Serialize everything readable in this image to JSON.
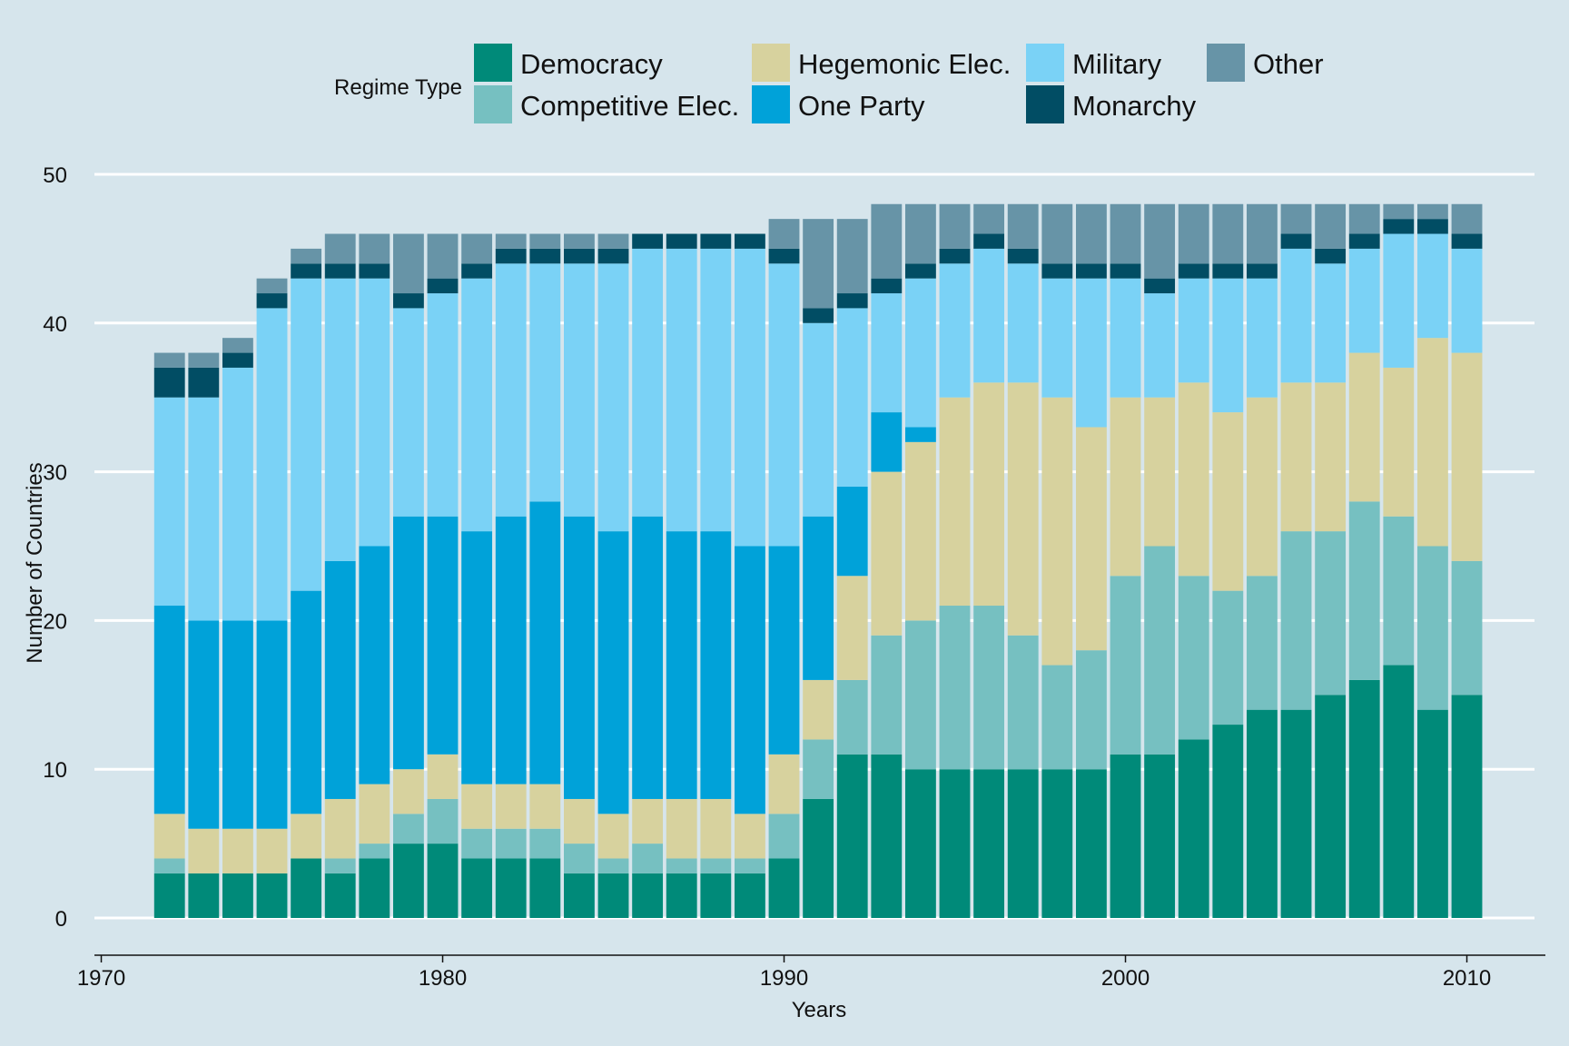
{
  "chart_data": {
    "type": "bar",
    "stacked": true,
    "title": "",
    "xlabel": "Years",
    "ylabel": "Number of Countries",
    "xlim": [
      1969.8,
      2012.3
    ],
    "ylim": [
      0,
      50
    ],
    "x_ticks": [
      1970,
      1980,
      1990,
      2000,
      2010
    ],
    "y_ticks": [
      0,
      10,
      20,
      30,
      40,
      50
    ],
    "grid": "horizontal",
    "legend_title": "Regime Type",
    "legend_position": "top",
    "years": [
      1972,
      1973,
      1974,
      1975,
      1976,
      1977,
      1978,
      1979,
      1980,
      1981,
      1982,
      1983,
      1984,
      1985,
      1986,
      1987,
      1988,
      1989,
      1990,
      1991,
      1992,
      1993,
      1994,
      1995,
      1996,
      1997,
      1998,
      1999,
      2000,
      2001,
      2002,
      2003,
      2004,
      2005,
      2006,
      2007,
      2008,
      2009,
      2010
    ],
    "series": [
      {
        "name": "Democracy",
        "color": "#008a79",
        "values": [
          3,
          3,
          3,
          3,
          4,
          3,
          4,
          5,
          5,
          4,
          4,
          4,
          3,
          3,
          3,
          3,
          3,
          3,
          4,
          8,
          11,
          11,
          10,
          10,
          10,
          10,
          10,
          10,
          11,
          11,
          12,
          13,
          14,
          14,
          15,
          16,
          17,
          14,
          15
        ]
      },
      {
        "name": "Competitive Elec.",
        "color": "#76c0c1",
        "values": [
          1,
          0,
          0,
          0,
          0,
          1,
          1,
          2,
          3,
          2,
          2,
          2,
          2,
          1,
          2,
          1,
          1,
          1,
          3,
          4,
          5,
          8,
          10,
          11,
          11,
          9,
          7,
          8,
          12,
          14,
          11,
          9,
          9,
          12,
          11,
          12,
          10,
          11,
          9
        ]
      },
      {
        "name": "Hegemonic Elec.",
        "color": "#d7d29e",
        "values": [
          3,
          3,
          3,
          3,
          3,
          4,
          4,
          3,
          3,
          3,
          3,
          3,
          3,
          3,
          3,
          4,
          4,
          3,
          4,
          4,
          7,
          11,
          12,
          14,
          15,
          17,
          18,
          15,
          12,
          10,
          13,
          12,
          12,
          10,
          10,
          10,
          10,
          14,
          14
        ]
      },
      {
        "name": "One Party",
        "color": "#00a2d9",
        "values": [
          14,
          14,
          14,
          14,
          15,
          16,
          16,
          17,
          16,
          17,
          18,
          19,
          19,
          19,
          19,
          18,
          18,
          18,
          14,
          11,
          6,
          4,
          1,
          0,
          0,
          0,
          0,
          0,
          0,
          0,
          0,
          0,
          0,
          0,
          0,
          0,
          0,
          0,
          0
        ]
      },
      {
        "name": "Military",
        "color": "#7ad2f6",
        "values": [
          14,
          15,
          17,
          21,
          21,
          19,
          18,
          14,
          15,
          17,
          17,
          16,
          17,
          18,
          18,
          19,
          19,
          20,
          19,
          13,
          12,
          8,
          10,
          9,
          9,
          8,
          8,
          10,
          8,
          7,
          7,
          9,
          8,
          9,
          8,
          7,
          9,
          7,
          7
        ]
      },
      {
        "name": "Monarchy",
        "color": "#014d64",
        "values": [
          2,
          2,
          1,
          1,
          1,
          1,
          1,
          1,
          1,
          1,
          1,
          1,
          1,
          1,
          1,
          1,
          1,
          1,
          1,
          1,
          1,
          1,
          1,
          1,
          1,
          1,
          1,
          1,
          1,
          1,
          1,
          1,
          1,
          1,
          1,
          1,
          1,
          1,
          1
        ]
      },
      {
        "name": "Other",
        "color": "#6794a7",
        "values": [
          1,
          1,
          1,
          1,
          1,
          2,
          2,
          4,
          3,
          2,
          1,
          1,
          1,
          1,
          0,
          0,
          0,
          0,
          2,
          6,
          5,
          5,
          4,
          3,
          2,
          3,
          4,
          4,
          4,
          5,
          4,
          4,
          4,
          2,
          3,
          2,
          1,
          1,
          2
        ]
      }
    ]
  }
}
